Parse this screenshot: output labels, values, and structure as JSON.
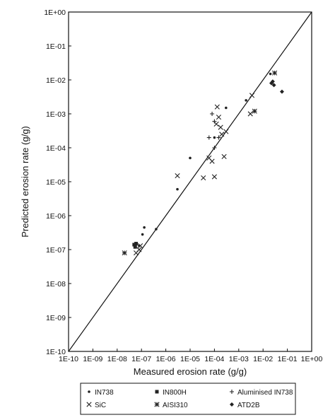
{
  "chart_data": {
    "type": "scatter",
    "title": "",
    "xlabel": "Measured erosion rate (g/g)",
    "ylabel": "Predicted erosion rate (g/g)",
    "scale": "log-log",
    "xlim": [
      1e-10,
      1
    ],
    "ylim": [
      1e-10,
      1
    ],
    "x_tick_labels": [
      "1E-10",
      "1E-09",
      "1E-08",
      "1E-07",
      "1E-06",
      "1E-05",
      "1E-04",
      "1E-03",
      "1E-02",
      "1E-01",
      "1E+00"
    ],
    "y_tick_labels": [
      "1E-10",
      "1E-09",
      "1E-08",
      "1E-07",
      "1E-06",
      "1E-05",
      "1E-04",
      "1E-03",
      "1E-02",
      "1E-01",
      "1E+00"
    ],
    "reference_line": "y = x",
    "grid": false,
    "legend_position": "bottom",
    "series": [
      {
        "name": "IN738",
        "marker": "dot",
        "color": "#222222",
        "points": [
          [
            8e-08,
            1.3e-07
          ],
          [
            1.1e-07,
            2.8e-07
          ],
          [
            1.3e-07,
            4.5e-07
          ],
          [
            4e-07,
            4e-07
          ],
          [
            3e-06,
            6e-06
          ],
          [
            1e-05,
            5e-05
          ],
          [
            0.0001,
            0.0002
          ],
          [
            0.0003,
            0.0015
          ],
          [
            0.002,
            0.0025
          ],
          [
            0.02,
            0.015
          ]
        ]
      },
      {
        "name": "IN800H",
        "marker": "square",
        "color": "#222222",
        "points": [
          [
            5e-08,
            1.4e-07
          ],
          [
            5.5e-08,
            1.2e-07
          ],
          [
            6e-08,
            1.5e-07
          ]
        ]
      },
      {
        "name": "Aluminised IN738",
        "marker": "plus",
        "color": "#222222",
        "points": [
          [
            6e-05,
            0.0002
          ],
          [
            8e-05,
            0.001
          ],
          [
            0.0001,
            0.0006
          ],
          [
            0.00015,
            0.0002
          ],
          [
            0.0001,
            0.0001
          ]
        ]
      },
      {
        "name": "SiC",
        "marker": "x",
        "color": "#222222",
        "points": [
          [
            3e-06,
            1.5e-05
          ],
          [
            3.5e-05,
            1.3e-05
          ],
          [
            6e-05,
            5e-05
          ],
          [
            8e-05,
            4e-05
          ],
          [
            0.0001,
            1.4e-05
          ],
          [
            0.00012,
            0.0005
          ],
          [
            0.00013,
            0.0016
          ],
          [
            0.00015,
            0.0008
          ],
          [
            0.00018,
            0.0004
          ],
          [
            0.0002,
            0.00025
          ],
          [
            0.00025,
            5.5e-05
          ],
          [
            0.0003,
            0.0003
          ],
          [
            0.003,
            0.001
          ],
          [
            0.0035,
            0.0035
          ],
          [
            6e-08,
            8e-08
          ],
          [
            8e-08,
            1e-07
          ],
          [
            9e-08,
            1.3e-07
          ]
        ]
      },
      {
        "name": "AISI310",
        "marker": "star",
        "color": "#222222",
        "points": [
          [
            2e-08,
            8e-08
          ],
          [
            0.03,
            0.016
          ],
          [
            0.0045,
            0.0012
          ]
        ]
      },
      {
        "name": "ATD2B",
        "marker": "diamond",
        "color": "#222222",
        "points": [
          [
            0.022,
            0.008
          ],
          [
            0.025,
            0.009
          ],
          [
            0.028,
            0.007
          ],
          [
            0.06,
            0.0045
          ]
        ]
      }
    ]
  }
}
